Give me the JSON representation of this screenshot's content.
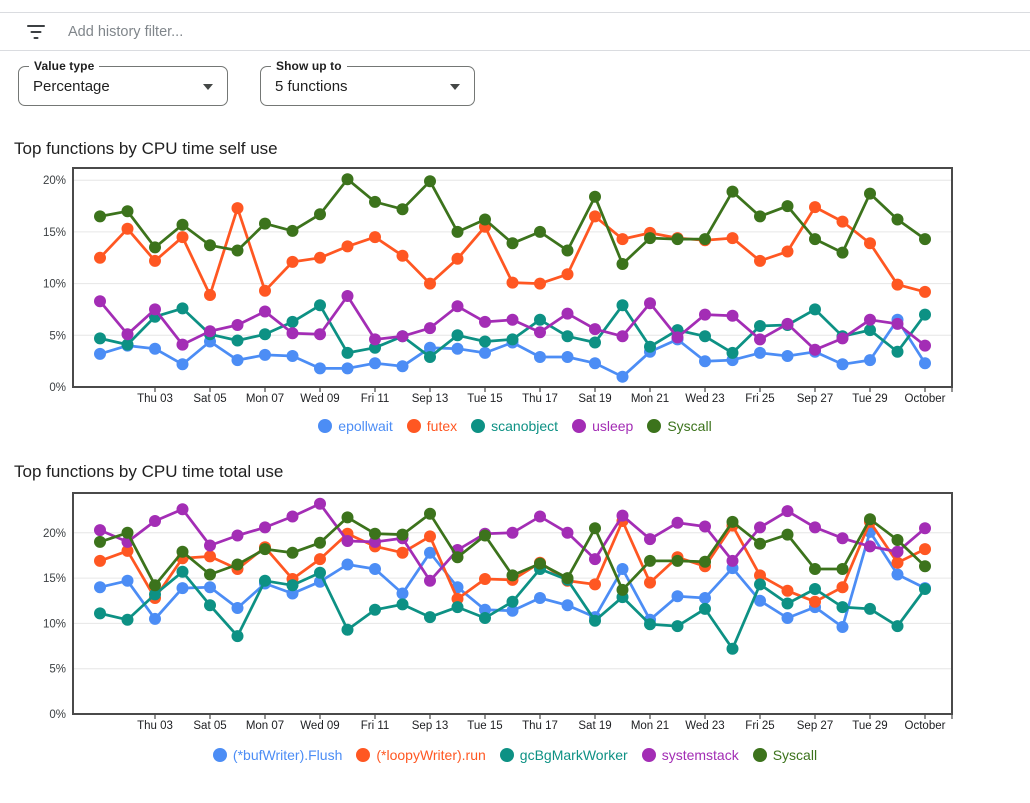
{
  "filter_bar": {
    "icon": "filter-list-icon",
    "placeholder": "Add history filter..."
  },
  "controls": {
    "value_type": {
      "label": "Value type",
      "value": "Percentage"
    },
    "show_up_to": {
      "label": "Show up to",
      "value": "5 functions"
    }
  },
  "chart_data": [
    {
      "type": "line",
      "title": "Top functions by CPU time self use",
      "xlabel": "",
      "ylabel": "",
      "y_ticks": [
        "0%",
        "5%",
        "10%",
        "15%",
        "20%"
      ],
      "ylim": [
        0,
        21.4
      ],
      "grid": true,
      "legend_position": "bottom",
      "x_tick_labels": [
        "Thu 03",
        "Sat 05",
        "Mon 07",
        "Wed 09",
        "Fri 11",
        "Sep 13",
        "Tue 15",
        "Thu 17",
        "Sat 19",
        "Mon 21",
        "Wed 23",
        "Fri 25",
        "Sep 27",
        "Tue 29",
        "October"
      ],
      "series": [
        {
          "name": "epollwait",
          "color": "#4C8DF5",
          "values": [
            3.2,
            4.0,
            3.7,
            2.2,
            4.4,
            2.6,
            3.1,
            3.0,
            1.8,
            1.8,
            2.3,
            2.0,
            3.8,
            3.7,
            3.3,
            4.3,
            2.9,
            2.9,
            2.3,
            1.0,
            3.4,
            4.6,
            2.5,
            2.6,
            3.3,
            3.0,
            3.4,
            2.2,
            2.6,
            6.5,
            2.3
          ]
        },
        {
          "name": "futex",
          "color": "#FF5722",
          "values": [
            12.5,
            15.3,
            12.2,
            14.5,
            8.9,
            17.3,
            9.3,
            12.1,
            12.5,
            13.6,
            14.5,
            12.7,
            10.0,
            12.4,
            15.5,
            10.1,
            10.0,
            10.9,
            16.5,
            14.3,
            14.9,
            14.4,
            14.2,
            14.4,
            12.2,
            13.1,
            17.4,
            16.0,
            13.9,
            9.9,
            9.2
          ]
        },
        {
          "name": "scanobject",
          "color": "#0D9184",
          "values": [
            4.7,
            4.1,
            6.8,
            7.6,
            5.1,
            4.5,
            5.1,
            6.3,
            7.9,
            3.3,
            3.8,
            4.9,
            2.9,
            5.0,
            4.4,
            4.6,
            6.5,
            4.9,
            4.3,
            7.9,
            3.9,
            5.5,
            4.9,
            3.3,
            5.9,
            6.0,
            7.5,
            4.9,
            5.5,
            3.4,
            7.0
          ]
        },
        {
          "name": "usleep",
          "color": "#A32DB5",
          "values": [
            8.3,
            5.1,
            7.5,
            4.1,
            5.4,
            6.0,
            7.3,
            5.2,
            5.1,
            8.8,
            4.6,
            4.9,
            5.7,
            7.8,
            6.3,
            6.5,
            5.3,
            7.1,
            5.6,
            4.9,
            8.1,
            4.8,
            7.0,
            6.9,
            4.6,
            6.1,
            3.6,
            4.7,
            6.5,
            6.1,
            4.0
          ]
        },
        {
          "name": "Syscall",
          "color": "#3C731C",
          "values": [
            16.5,
            17.0,
            13.5,
            15.7,
            13.7,
            13.2,
            15.8,
            15.1,
            16.7,
            20.1,
            17.9,
            17.2,
            19.9,
            15.0,
            16.2,
            13.9,
            15.0,
            13.2,
            18.4,
            11.9,
            14.4,
            14.3,
            14.3,
            18.9,
            16.5,
            17.5,
            14.3,
            13.0,
            18.7,
            16.2,
            14.3
          ]
        }
      ]
    },
    {
      "type": "line",
      "title": "Top functions by CPU time total use",
      "xlabel": "",
      "ylabel": "",
      "y_ticks": [
        "0%",
        "5%",
        "10%",
        "15%",
        "20%"
      ],
      "ylim": [
        0,
        24.4
      ],
      "grid": true,
      "legend_position": "bottom",
      "x_tick_labels": [
        "Thu 03",
        "Sat 05",
        "Mon 07",
        "Wed 09",
        "Fri 11",
        "Sep 13",
        "Tue 15",
        "Thu 17",
        "Sat 19",
        "Mon 21",
        "Wed 23",
        "Fri 25",
        "Sep 27",
        "Tue 29",
        "October"
      ],
      "series": [
        {
          "name": "(*bufWriter).Flush",
          "color": "#4C8DF5",
          "values": [
            14.0,
            14.7,
            10.5,
            13.9,
            14.0,
            11.7,
            14.4,
            13.3,
            14.6,
            16.5,
            16.0,
            13.3,
            17.8,
            14.0,
            11.5,
            11.4,
            12.8,
            12.0,
            10.7,
            16.0,
            10.4,
            13.0,
            12.8,
            16.1,
            12.5,
            10.6,
            11.8,
            9.6,
            20.1,
            15.4,
            13.9
          ]
        },
        {
          "name": "(*loopyWriter).run",
          "color": "#FF5722",
          "values": [
            16.9,
            18.0,
            12.8,
            17.2,
            17.4,
            16.0,
            18.4,
            14.9,
            17.1,
            19.9,
            18.5,
            17.8,
            19.6,
            12.7,
            14.9,
            14.8,
            16.7,
            14.7,
            14.3,
            21.3,
            14.5,
            17.3,
            16.3,
            20.8,
            15.3,
            13.6,
            12.4,
            14.0,
            21.2,
            16.7,
            18.2
          ]
        },
        {
          "name": "gcBgMarkWorker",
          "color": "#0D9184",
          "values": [
            11.1,
            10.4,
            13.2,
            15.7,
            12.0,
            8.6,
            14.7,
            14.2,
            15.6,
            9.3,
            11.5,
            12.1,
            10.7,
            11.8,
            10.6,
            12.4,
            16.0,
            14.8,
            10.3,
            12.9,
            9.9,
            9.7,
            11.6,
            7.2,
            14.3,
            12.2,
            13.8,
            11.8,
            11.6,
            9.7,
            13.8
          ]
        },
        {
          "name": "systemstack",
          "color": "#A32DB5",
          "values": [
            20.3,
            19.0,
            21.3,
            22.6,
            18.6,
            19.7,
            20.6,
            21.8,
            23.2,
            19.1,
            19.0,
            19.4,
            14.7,
            18.1,
            19.9,
            20.0,
            21.8,
            20.0,
            17.1,
            21.9,
            19.3,
            21.1,
            20.7,
            16.9,
            20.6,
            22.4,
            20.6,
            19.4,
            18.5,
            17.9,
            20.5
          ]
        },
        {
          "name": "Syscall",
          "color": "#3C731C",
          "values": [
            19.0,
            20.0,
            14.2,
            17.9,
            15.4,
            16.5,
            18.2,
            17.8,
            18.9,
            21.7,
            19.9,
            19.8,
            22.1,
            17.3,
            19.7,
            15.3,
            16.6,
            15.0,
            20.5,
            13.7,
            16.9,
            16.9,
            16.8,
            21.2,
            18.8,
            19.8,
            16.0,
            16.0,
            21.5,
            19.2,
            16.3
          ]
        }
      ]
    }
  ]
}
